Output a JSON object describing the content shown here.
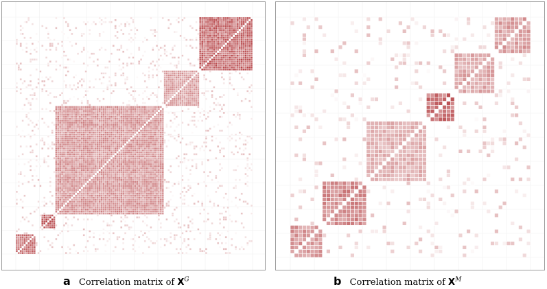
{
  "chart_data": [
    {
      "type": "heatmap",
      "panel": "a",
      "title": "Correlation matrix of X^G",
      "caption_letter": "a",
      "caption_text": "Correlation matrix of",
      "caption_symbol": "X",
      "caption_superscript": "G",
      "n": 120,
      "color_low": "#ffffff",
      "color_high": "#a4161a",
      "grid": true,
      "blocks": [
        {
          "start": 0,
          "end": 9,
          "strength": 0.75
        },
        {
          "start": 13,
          "end": 19,
          "strength": 0.85
        },
        {
          "start": 20,
          "end": 74,
          "strength": 0.55
        },
        {
          "start": 75,
          "end": 92,
          "strength": 0.5
        },
        {
          "start": 93,
          "end": 119,
          "strength": 0.8
        }
      ]
    },
    {
      "type": "heatmap",
      "panel": "b",
      "title": "Correlation matrix of X^M",
      "caption_letter": "b",
      "caption_text": "Correlation matrix of",
      "caption_symbol": "X",
      "caption_superscript": "M",
      "n": 60,
      "color_low": "#ffffff",
      "color_high": "#a4161a",
      "grid": true,
      "blocks": [
        {
          "start": 0,
          "end": 7,
          "strength": 0.55
        },
        {
          "start": 8,
          "end": 18,
          "strength": 0.6
        },
        {
          "start": 19,
          "end": 33,
          "strength": 0.4
        },
        {
          "start": 34,
          "end": 40,
          "strength": 0.75
        },
        {
          "start": 41,
          "end": 50,
          "strength": 0.45
        },
        {
          "start": 51,
          "end": 59,
          "strength": 0.5
        }
      ]
    }
  ]
}
